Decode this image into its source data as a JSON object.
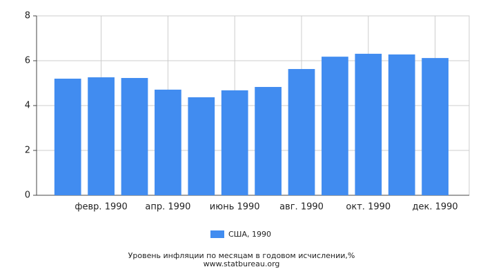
{
  "chart_data": {
    "type": "bar",
    "categories": [
      null,
      "февр. 1990",
      null,
      "апр. 1990",
      null,
      "июнь 1990",
      null,
      "авг. 1990",
      null,
      "окт. 1990",
      null,
      "дек. 1990"
    ],
    "series": [
      {
        "name": "США, 1990",
        "color": "#418cf0",
        "values": [
          5.2,
          5.26,
          5.23,
          4.71,
          4.37,
          4.68,
          4.83,
          5.63,
          6.18,
          6.31,
          6.28,
          6.12
        ]
      }
    ],
    "ylim": [
      0,
      8
    ],
    "yticks": [
      0,
      2,
      4,
      6,
      8
    ],
    "grid": true,
    "title": "Уровень инфляции по месяцам в годовом исчислении,%",
    "subtitle": "www.statbureau.org"
  }
}
